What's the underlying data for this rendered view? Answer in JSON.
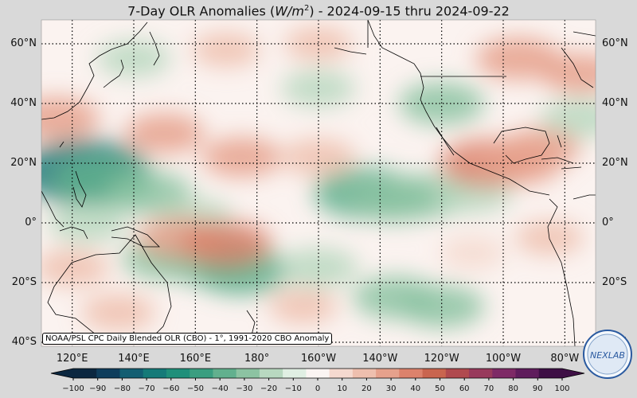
{
  "title_prefix": "7-Day OLR Anomalies (",
  "title_unit_base": "W/m",
  "title_unit_exp": "2",
  "title_suffix": ") - 2024-09-15 thru 2024-09-22",
  "source_note": "NOAA/PSL CPC Daily Blended OLR (CBO) - 1°, 1991-2020 CBO Anomaly",
  "logo_text": "NEXLAB",
  "map": {
    "lon_range": [
      110,
      290
    ],
    "lat_range": [
      -40,
      67
    ],
    "lat_ticks": [
      60,
      40,
      20,
      0,
      -20,
      -40
    ],
    "lat_labels": [
      "60°N",
      "40°N",
      "20°N",
      "0°",
      "20°S",
      "40°S"
    ],
    "lon_ticks": [
      120,
      140,
      160,
      180,
      200,
      220,
      240,
      260,
      280
    ],
    "lon_labels": [
      "120°E",
      "140°E",
      "160°E",
      "180°",
      "160°W",
      "140°W",
      "120°W",
      "100°W",
      "80°W"
    ]
  },
  "colorbar": {
    "min": -100,
    "max": 100,
    "ticks": [
      -100,
      -90,
      -80,
      -70,
      -60,
      -50,
      -40,
      -30,
      -20,
      -10,
      0,
      10,
      20,
      30,
      40,
      50,
      60,
      70,
      80,
      90,
      100
    ],
    "tick_labels": [
      "−100",
      "−90",
      "−80",
      "−70",
      "−60",
      "−50",
      "−40",
      "−30",
      "−20",
      "−10",
      "0",
      "10",
      "20",
      "30",
      "40",
      "50",
      "60",
      "70",
      "80",
      "90",
      "100"
    ],
    "colors": [
      "#0b2740",
      "#0f3d5c",
      "#135e72",
      "#157a78",
      "#1f8f7a",
      "#3a9e80",
      "#62b08e",
      "#8cc3a2",
      "#b8d8c0",
      "#e0efe3",
      "#fbf5f3",
      "#f5d9cf",
      "#eebfae",
      "#e6a18c",
      "#dc826c",
      "#c9654f",
      "#b04a4f",
      "#983a5c",
      "#7e2a66",
      "#5f1d5c",
      "#3e0f45"
    ]
  },
  "anomalies": [
    {
      "lon": 124,
      "lat": 17,
      "value": -70
    },
    {
      "lon": 130,
      "lat": 14,
      "value": -45
    },
    {
      "lon": 145,
      "lat": 10,
      "value": -30
    },
    {
      "lon": 160,
      "lat": 2,
      "value": -20
    },
    {
      "lon": 125,
      "lat": 0,
      "value": -25
    },
    {
      "lon": 165,
      "lat": -12,
      "value": -45
    },
    {
      "lon": 175,
      "lat": -16,
      "value": -40
    },
    {
      "lon": 150,
      "lat": -12,
      "value": -30
    },
    {
      "lon": 215,
      "lat": 10,
      "value": -45
    },
    {
      "lon": 225,
      "lat": 8,
      "value": -35
    },
    {
      "lon": 235,
      "lat": 9,
      "value": -30
    },
    {
      "lon": 250,
      "lat": 10,
      "value": -25
    },
    {
      "lon": 200,
      "lat": -15,
      "value": -25
    },
    {
      "lon": 225,
      "lat": -25,
      "value": -30
    },
    {
      "lon": 240,
      "lat": -28,
      "value": -30
    },
    {
      "lon": 240,
      "lat": 40,
      "value": -30
    },
    {
      "lon": 200,
      "lat": 45,
      "value": -20
    },
    {
      "lon": 140,
      "lat": 55,
      "value": -20
    },
    {
      "lon": 285,
      "lat": 35,
      "value": -25
    },
    {
      "lon": 115,
      "lat": 35,
      "value": 30
    },
    {
      "lon": 150,
      "lat": 30,
      "value": 25
    },
    {
      "lon": 175,
      "lat": 22,
      "value": 25
    },
    {
      "lon": 200,
      "lat": 22,
      "value": 20
    },
    {
      "lon": 255,
      "lat": 20,
      "value": 40
    },
    {
      "lon": 265,
      "lat": 20,
      "value": 30
    },
    {
      "lon": 272,
      "lat": 25,
      "value": 25
    },
    {
      "lon": 265,
      "lat": 55,
      "value": 30
    },
    {
      "lon": 285,
      "lat": 50,
      "value": 25
    },
    {
      "lon": 155,
      "lat": -5,
      "value": 30
    },
    {
      "lon": 170,
      "lat": -7,
      "value": 35
    },
    {
      "lon": 120,
      "lat": -15,
      "value": 20
    },
    {
      "lon": 135,
      "lat": -30,
      "value": 20
    },
    {
      "lon": 195,
      "lat": -28,
      "value": 15
    },
    {
      "lon": 200,
      "lat": 60,
      "value": 15
    },
    {
      "lon": 170,
      "lat": 58,
      "value": 15
    },
    {
      "lon": 250,
      "lat": -10,
      "value": 12
    },
    {
      "lon": 275,
      "lat": -5,
      "value": 15
    }
  ]
}
